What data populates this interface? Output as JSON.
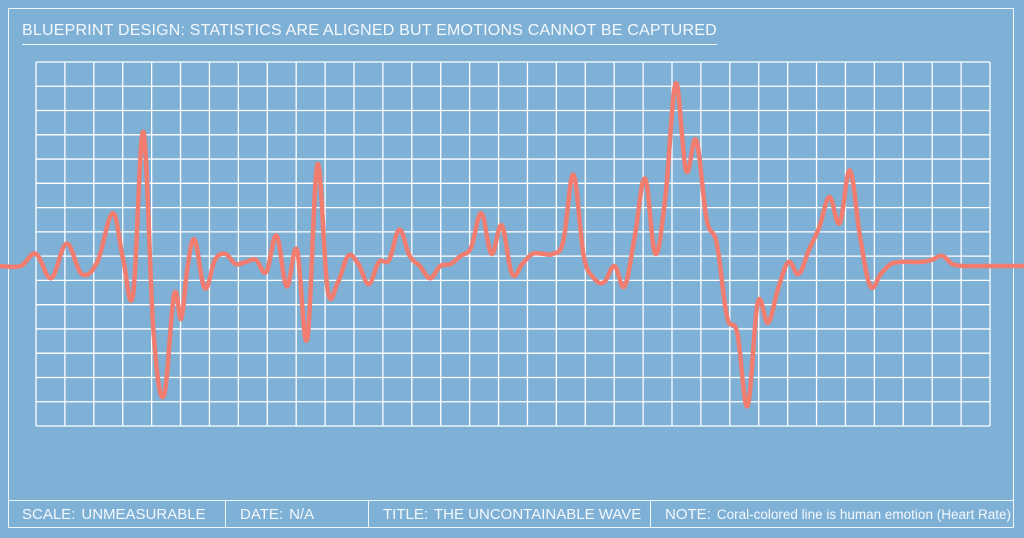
{
  "header": {
    "title": "BLUEPRINT DESIGN: STATISTICS ARE ALIGNED BUT EMOTIONS CANNOT BE CAPTURED"
  },
  "footer": {
    "scale": {
      "key": "SCALE:",
      "value": "UNMEASURABLE"
    },
    "date": {
      "key": "DATE:",
      "value": "N/A"
    },
    "title": {
      "key": "TITLE:",
      "value": "THE UNCONTAINABLE WAVE"
    },
    "note": {
      "key": "NOTE:",
      "value": "Coral-colored line is human emotion (Heart Rate)"
    }
  },
  "colors": {
    "background": "#7fb0d6",
    "grid": "#ffffff",
    "line": "#f07d6f",
    "frame": "#eef6fc"
  },
  "chart_data": {
    "type": "line",
    "title": "",
    "xlabel": "",
    "ylabel": "",
    "grid": true,
    "xlim": [
      0,
      100
    ],
    "ylim": [
      -10,
      10
    ],
    "series": [
      {
        "x": [
          0,
          2,
          3.5,
          5,
          6.5,
          8,
          9.5,
          11,
          12,
          13,
          14,
          15,
          16,
          17,
          17.7,
          18.3,
          19,
          20,
          21,
          22,
          23,
          24,
          25,
          26,
          27,
          28,
          29,
          30,
          31,
          32,
          33,
          34,
          35,
          36,
          37,
          38,
          39,
          40,
          41,
          42,
          43,
          44,
          45,
          46,
          47,
          48,
          49,
          50,
          51,
          52,
          53,
          54,
          55,
          56,
          57,
          58,
          59,
          60,
          61,
          62,
          63,
          64,
          65,
          66,
          67,
          68,
          69,
          70,
          71,
          72,
          73,
          74,
          75,
          76,
          77,
          78,
          79,
          80,
          81,
          82,
          83,
          84,
          85,
          86,
          87,
          88,
          89,
          90,
          91,
          92,
          93,
          94,
          95,
          96,
          97,
          98,
          100
        ],
        "y": [
          0,
          0,
          0.6,
          -0.6,
          1.1,
          -0.4,
          0.2,
          2.6,
          0.4,
          -1.4,
          6.6,
          -3.3,
          -6.4,
          -1.4,
          -2.6,
          -0.1,
          1.3,
          -1.1,
          0.3,
          0.6,
          0.1,
          0.2,
          0.3,
          -0.3,
          1.5,
          -1.0,
          0.8,
          -3.6,
          5.0,
          -1.2,
          -0.8,
          0.5,
          0.1,
          -0.9,
          0.2,
          0.3,
          1.8,
          0.5,
          0.0,
          -0.6,
          0.0,
          0.1,
          0.5,
          0.9,
          2.6,
          0.6,
          2.0,
          -0.4,
          0.1,
          0.6,
          0.6,
          0.6,
          1.2,
          4.5,
          0.5,
          -0.6,
          -0.8,
          0.0,
          -1.0,
          1.5,
          4.3,
          0.6,
          3.5,
          9.0,
          4.7,
          6.2,
          2.3,
          1.1,
          -2.5,
          -3.3,
          -6.9,
          -1.8,
          -2.8,
          -1.1,
          0.2,
          -0.4,
          0.8,
          1.9,
          3.4,
          2.1,
          4.7,
          1.4,
          -1.0,
          -0.4,
          0.1,
          0.2,
          0.2,
          0.2,
          0.3,
          0.5,
          0.1,
          0.0,
          0.0,
          0.0,
          0.0,
          0.0,
          0.0
        ]
      }
    ]
  }
}
